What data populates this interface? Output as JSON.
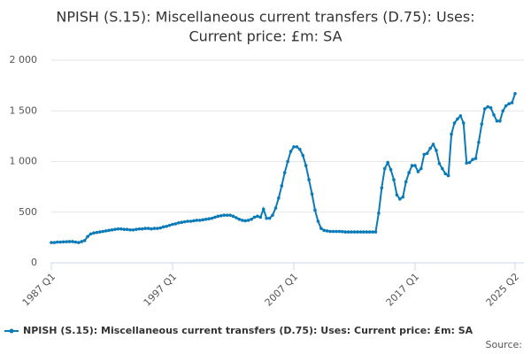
{
  "chart_data": {
    "type": "line",
    "title": [
      "NPISH (S.15): Miscellaneous current transfers (D.75): Uses:",
      "Current price: £m: SA"
    ],
    "source": "Source:",
    "categories": [
      "1987 Q1",
      null,
      null,
      null,
      null,
      null,
      null,
      null,
      null,
      null,
      null,
      null,
      null,
      null,
      null,
      null,
      null,
      null,
      null,
      null,
      null,
      null,
      null,
      null,
      null,
      null,
      null,
      null,
      null,
      null,
      null,
      null,
      null,
      null,
      null,
      null,
      null,
      null,
      null,
      null,
      "1997 Q1",
      null,
      null,
      null,
      null,
      null,
      null,
      null,
      null,
      null,
      null,
      null,
      null,
      null,
      null,
      null,
      null,
      null,
      null,
      null,
      null,
      null,
      null,
      null,
      null,
      null,
      null,
      null,
      null,
      null,
      null,
      null,
      null,
      null,
      null,
      null,
      null,
      null,
      null,
      null,
      "2007 Q1",
      null,
      null,
      null,
      null,
      null,
      null,
      null,
      null,
      null,
      null,
      null,
      null,
      null,
      null,
      null,
      null,
      null,
      null,
      null,
      null,
      null,
      null,
      null,
      null,
      null,
      null,
      null,
      null,
      null,
      null,
      null,
      null,
      null,
      null,
      null,
      null,
      null,
      null,
      null,
      "2017 Q1",
      null,
      null,
      null,
      null,
      null,
      null,
      null,
      null,
      null,
      null,
      null,
      null,
      null,
      null,
      null,
      null,
      null,
      null,
      null,
      null,
      null,
      null,
      null,
      null,
      null,
      null,
      null,
      null,
      null,
      null,
      null,
      null,
      "2025 Q2"
    ],
    "series": [
      {
        "name": "NPISH (S.15): Miscellaneous current transfers (D.75): Uses: Current price: £m: SA",
        "color": "#0a7ab8",
        "values": [
          200,
          200,
          205,
          205,
          207,
          208,
          210,
          210,
          205,
          200,
          210,
          220,
          260,
          285,
          295,
          300,
          305,
          310,
          315,
          320,
          325,
          330,
          335,
          335,
          330,
          330,
          325,
          325,
          330,
          335,
          335,
          340,
          340,
          335,
          340,
          340,
          345,
          355,
          360,
          370,
          380,
          385,
          395,
          400,
          405,
          410,
          410,
          415,
          420,
          420,
          425,
          430,
          435,
          440,
          450,
          460,
          465,
          470,
          470,
          470,
          460,
          445,
          430,
          420,
          415,
          420,
          430,
          450,
          460,
          450,
          530,
          440,
          440,
          470,
          540,
          640,
          760,
          890,
          1000,
          1100,
          1145,
          1145,
          1120,
          1060,
          960,
          820,
          680,
          520,
          410,
          340,
          320,
          315,
          310,
          310,
          310,
          310,
          308,
          305,
          305,
          305,
          305,
          305,
          305,
          305,
          305,
          305,
          305,
          305,
          490,
          740,
          930,
          990,
          920,
          820,
          670,
          630,
          650,
          800,
          890,
          960,
          960,
          900,
          930,
          1070,
          1080,
          1130,
          1170,
          1110,
          980,
          930,
          880,
          860,
          1270,
          1380,
          1420,
          1450,
          1380,
          985,
          990,
          1020,
          1030,
          1190,
          1370,
          1520,
          1540,
          1530,
          1460,
          1400,
          1400,
          1500,
          1550,
          1570,
          1580,
          1670
        ]
      }
    ],
    "ylim": [
      0,
      2000
    ],
    "yticks": [
      0,
      500,
      {
        "value": 1000,
        "label": "1 000"
      },
      {
        "value": 1500,
        "label": "1 500"
      },
      {
        "value": 2000,
        "label": "2 000"
      }
    ],
    "grid": true,
    "legend": "bottom"
  }
}
